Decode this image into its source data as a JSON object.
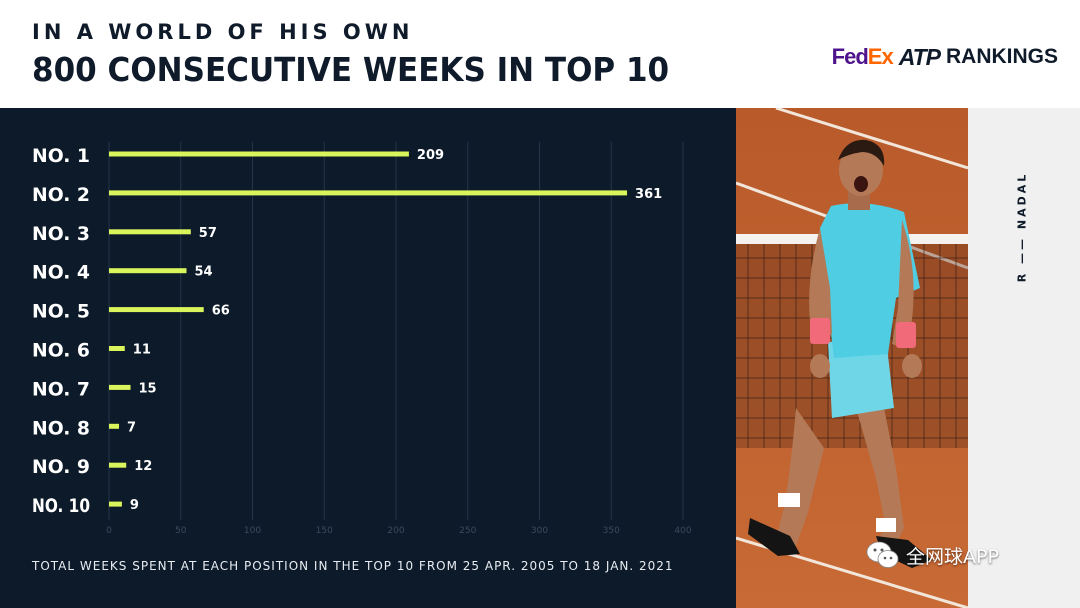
{
  "header": {
    "kicker": "IN A WORLD OF HIS OWN",
    "title": "800 CONSECUTIVE WEEKS IN TOP 10",
    "logo": {
      "fed": "Fed",
      "ex": "Ex",
      "atp": "ATP",
      "rankings": "RANKINGS"
    }
  },
  "side": {
    "player_name": "R —— NADAL"
  },
  "watermark": {
    "text": "全网球APP",
    "icon": "wechat-icon"
  },
  "colors": {
    "panel": "#0c1a29",
    "bar": "#d9f55b",
    "label": "#ffffff",
    "grid": "#24344a",
    "tick": "#3b4a5e"
  },
  "chart_data": {
    "type": "bar",
    "orientation": "horizontal",
    "categories": [
      "NO. 1",
      "NO. 2",
      "NO. 3",
      "NO. 4",
      "NO. 5",
      "NO. 6",
      "NO. 7",
      "NO. 8",
      "NO. 9",
      "NO. 10"
    ],
    "values": [
      209,
      361,
      57,
      54,
      66,
      11,
      15,
      7,
      12,
      9
    ],
    "xlim": [
      0,
      400
    ],
    "xticks": [
      0,
      50,
      100,
      150,
      200,
      250,
      300,
      350,
      400
    ],
    "grid": "vertical",
    "data_labels": true,
    "footnote": "TOTAL WEEKS SPENT AT EACH POSITION IN THE TOP 10 FROM 25 APR. 2005 TO 18 JAN. 2021"
  }
}
